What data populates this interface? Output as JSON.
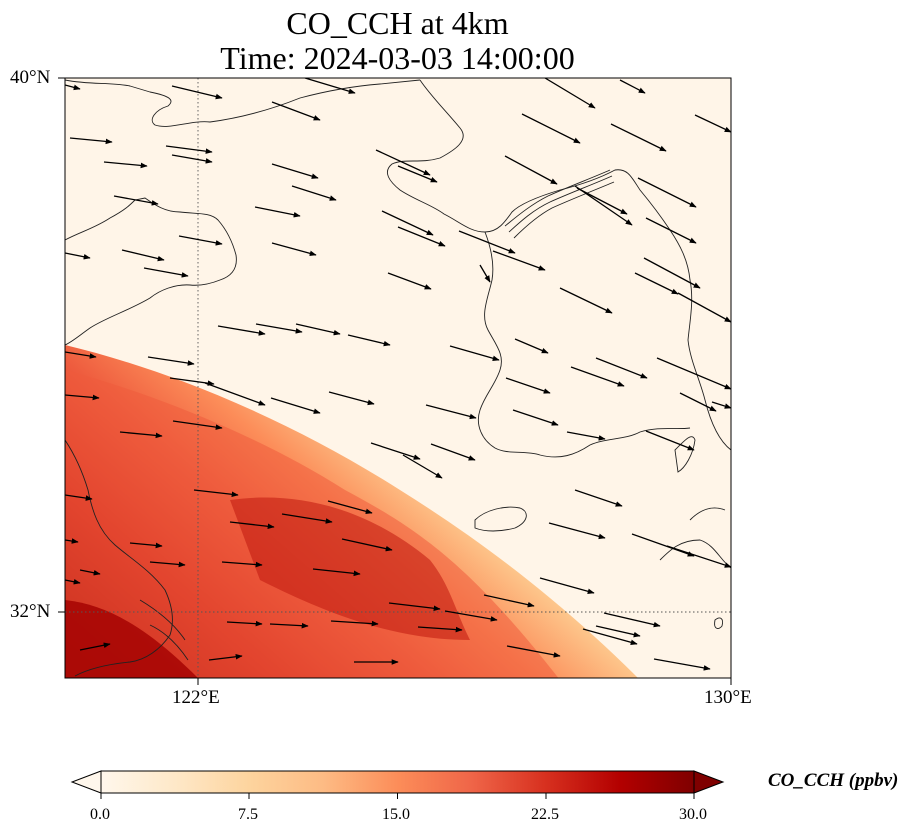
{
  "title": {
    "line1": "CO_CCH at 4km",
    "line2": "Time: 2024-03-03 14:00:00"
  },
  "map": {
    "lat_range": [
      30.7,
      40.0
    ],
    "lon_range": [
      120.0,
      130.0
    ],
    "lat_ticks": [
      {
        "value": 40,
        "label": "40°N"
      },
      {
        "value": 32,
        "label": "32°N"
      }
    ],
    "lon_ticks": [
      {
        "value": 122,
        "label": "122°E"
      },
      {
        "value": 130,
        "label": "130°E"
      }
    ],
    "gridlines": "dotted",
    "field": "CO_CCH concentration, high (~25 ppbv) in the southwest, decreasing to ~1 ppbv in the northeast",
    "vectors": "wind arrows pointing east to east-southeast"
  },
  "colorbar": {
    "title": "CO_CCH (ppbv)",
    "min": 0.0,
    "max": 30.0,
    "ticks": [
      "0.0",
      "7.5",
      "15.0",
      "22.5",
      "30.0"
    ],
    "colormap": "OrRd",
    "extend": "both"
  },
  "colors": {
    "low": "#fff7ec",
    "mid": "#fc8d59",
    "high": "#7f0000",
    "coast": "#222222",
    "arrow": "#000000"
  }
}
